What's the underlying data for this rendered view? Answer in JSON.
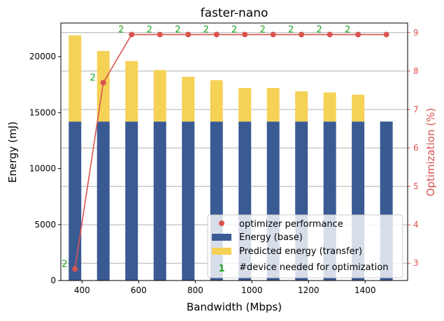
{
  "chart_data": {
    "type": "bar",
    "title": "faster-nano",
    "xlabel": "Bandwidth (Mbps)",
    "ylabel": "Energy (mJ)",
    "y2label": "Optimization (%)",
    "x": [
      375,
      475,
      575,
      675,
      775,
      875,
      975,
      1075,
      1175,
      1275,
      1375,
      1475
    ],
    "xlim": [
      325,
      1550
    ],
    "ylim": [
      0,
      23000
    ],
    "y2lim": [
      2.55,
      9.25
    ],
    "xticks": [
      400,
      600,
      800,
      1000,
      1200,
      1400
    ],
    "yticks": [
      0,
      5000,
      10000,
      15000,
      20000
    ],
    "y2ticks": [
      3,
      4,
      5,
      6,
      7,
      8,
      9
    ],
    "series": [
      {
        "name": "Energy (base)",
        "kind": "bar",
        "color": "#3a5a94",
        "values": [
          14200,
          14200,
          14200,
          14200,
          14200,
          14200,
          14200,
          14200,
          14200,
          14200,
          14200,
          14200
        ]
      },
      {
        "name": "Predicted energy (transfer)",
        "kind": "bar-stacked",
        "color": "#f5d256",
        "values": [
          7700,
          6300,
          5400,
          4600,
          4000,
          3700,
          3000,
          3000,
          2700,
          2600,
          2400,
          0
        ]
      },
      {
        "name": "optimizer performance",
        "kind": "line",
        "axis": "right",
        "color": "#d9534f",
        "values": [
          2.85,
          7.7,
          8.95,
          8.95,
          8.95,
          8.95,
          8.95,
          8.95,
          8.95,
          8.95,
          8.95,
          8.95
        ]
      }
    ],
    "device_labels": [
      "2",
      "2",
      "2",
      "2",
      "2",
      "2",
      "2",
      "2",
      "2",
      "2",
      "2"
    ],
    "legend": {
      "position": "lower-right",
      "optimizer_label": "optimizer performance",
      "base_label": "Energy (base)",
      "transfer_label": "Predicted energy (transfer)",
      "device_marker": "1",
      "device_label": "#device needed for optimization"
    },
    "grid": "horizontal (right axis)",
    "colors": {
      "base": "#3a5a94",
      "transfer": "#f5d256",
      "line": "#d9534f",
      "device": "#1fa31f"
    }
  }
}
